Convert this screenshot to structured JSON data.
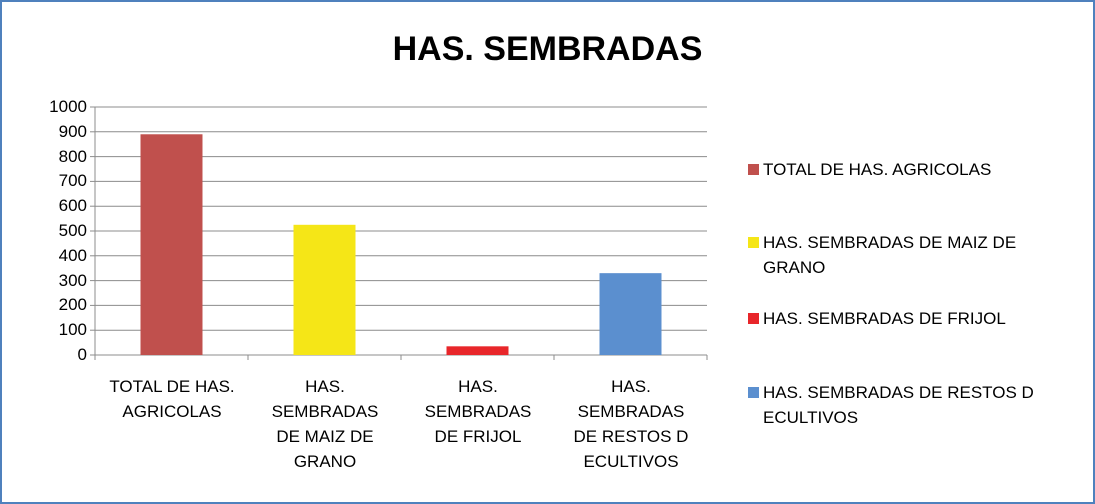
{
  "chart_data": {
    "type": "bar",
    "title": "HAS. SEMBRADAS",
    "categories": [
      "TOTAL DE HAS. AGRICOLAS",
      "HAS. SEMBRADAS DE MAIZ DE GRANO",
      "HAS. SEMBRADAS DE FRIJOL",
      "HAS. SEMBRADAS DE RESTOS D ECULTIVOS"
    ],
    "values": [
      890,
      525,
      35,
      330
    ],
    "colors": [
      "#c0504d",
      "#f5e617",
      "#e8262a",
      "#5b8fcf"
    ],
    "ylim": [
      0,
      1000
    ],
    "yticks": [
      0,
      100,
      200,
      300,
      400,
      500,
      600,
      700,
      800,
      900,
      1000
    ],
    "grid": true,
    "legend": "right"
  }
}
